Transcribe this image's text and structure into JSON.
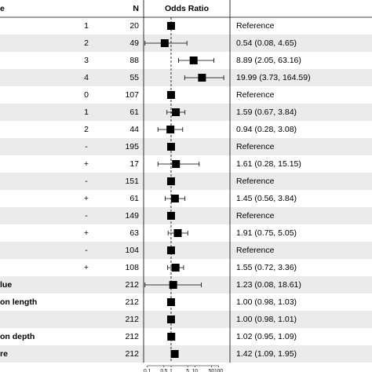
{
  "chart_data": {
    "type": "forest",
    "header": {
      "label": "e",
      "n": "N",
      "plot": "Odds Ratio"
    },
    "labels": [
      null,
      null,
      null,
      null,
      null,
      null,
      null,
      null,
      null,
      null,
      null,
      null,
      null,
      null,
      null,
      "lue",
      "on length",
      null,
      "on depth",
      "re"
    ],
    "levels": [
      "1",
      "2",
      "3",
      "4",
      "0",
      "1",
      "2",
      "-",
      "+",
      "-",
      "+",
      "-",
      "+",
      "-",
      "+",
      null,
      null,
      null,
      null,
      null
    ],
    "n": [
      20,
      49,
      88,
      55,
      107,
      61,
      44,
      195,
      17,
      151,
      61,
      149,
      63,
      104,
      108,
      212,
      212,
      212,
      212,
      212
    ],
    "values": [
      1,
      0.54,
      8.89,
      19.99,
      1,
      1.59,
      0.94,
      1,
      1.61,
      1,
      1.45,
      1,
      1.91,
      1,
      1.55,
      1.23,
      1.0,
      1.0,
      1.02,
      1.42
    ],
    "lower": [
      null,
      0.08,
      2.05,
      3.73,
      null,
      0.67,
      0.28,
      null,
      0.28,
      null,
      0.56,
      null,
      0.75,
      null,
      0.72,
      0.08,
      0.98,
      0.98,
      0.95,
      1.09
    ],
    "upper": [
      null,
      4.65,
      63.16,
      164.59,
      null,
      3.84,
      3.08,
      null,
      15.15,
      null,
      3.84,
      null,
      5.05,
      null,
      3.36,
      18.61,
      1.03,
      1.01,
      1.09,
      1.95
    ],
    "value_labels": [
      "Reference",
      "0.54 (0.08, 4.65)",
      "8.89 (2.05, 63.16)",
      "19.99 (3.73, 164.59)",
      "Reference",
      "1.59 (0.67, 3.84)",
      "0.94 (0.28, 3.08)",
      "Reference",
      "1.61 (0.28, 15.15)",
      "Reference",
      "1.45 (0.56, 3.84)",
      "Reference",
      "1.91 (0.75, 5.05)",
      "Reference",
      "1.55 (0.72, 3.36)",
      "1.23 (0.08, 18.61)",
      "1.00 (0.98, 1.03)",
      "1.00 (0.98, 1.01)",
      "1.02 (0.95, 1.09)",
      "1.42 (1.09, 1.95)"
    ],
    "xlim": [
      0.07,
      300
    ],
    "xticks": [
      0.1,
      0.5,
      1,
      5,
      10,
      50,
      100
    ],
    "log_scale": true,
    "ref_line": 1,
    "color": "#000000",
    "stripe_color": "#ebebeb"
  }
}
